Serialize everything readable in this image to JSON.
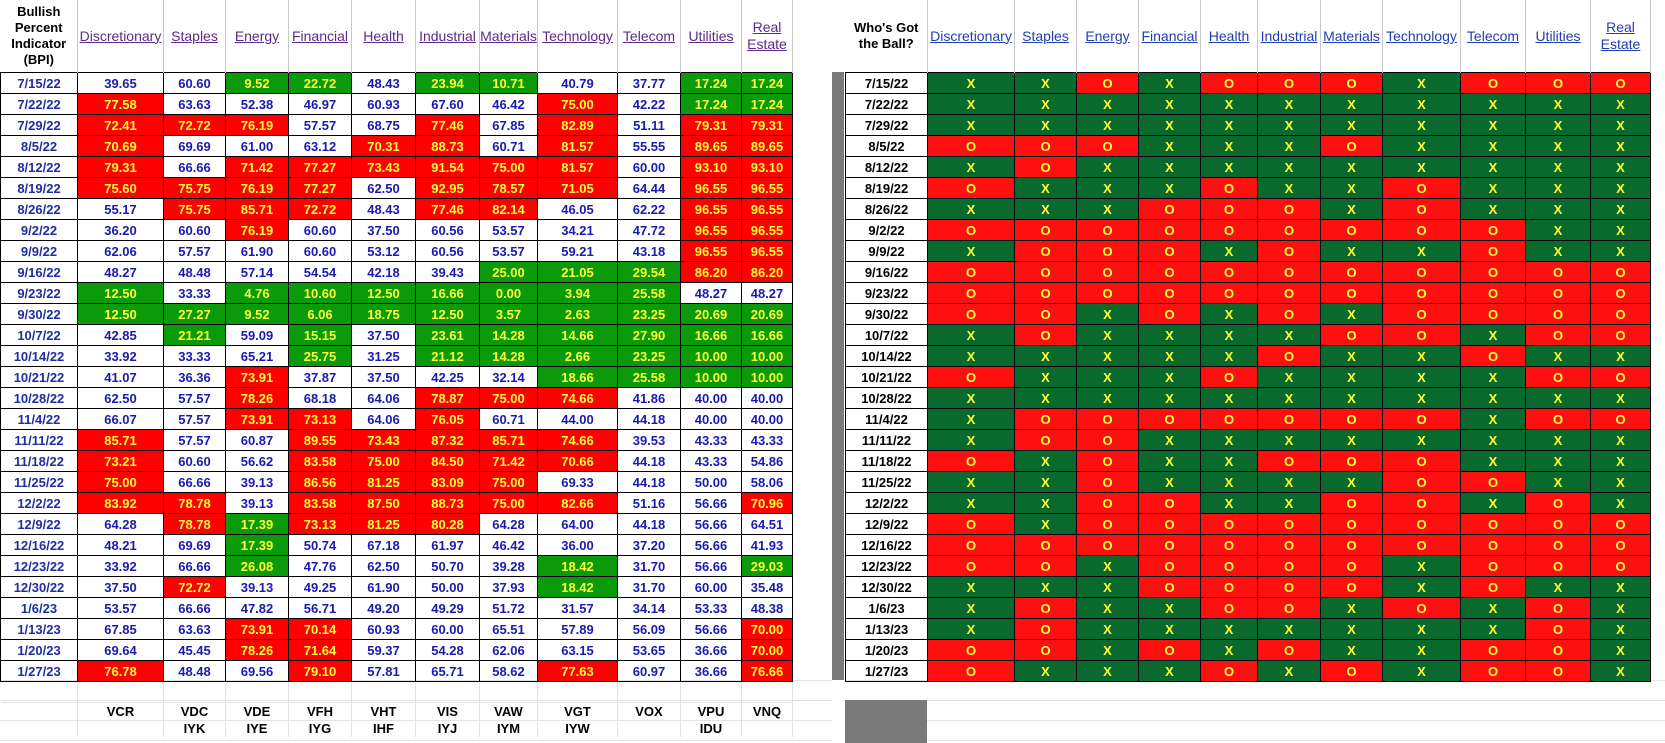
{
  "left_header_title": "Bullish\nPercent\nIndicator\n(BPI)",
  "right_header_title": "Who's Got\nthe Ball?",
  "sectors": [
    "Discretionary",
    "Staples",
    "Energy",
    "Financial",
    "Health",
    "Industrial",
    "Materials",
    "Technology",
    "Telecom",
    "Utilities",
    "Real\nEstate"
  ],
  "etfs_row1": [
    "VCR",
    "VDC",
    "VDE",
    "VFH",
    "VHT",
    "VIS",
    "VAW",
    "VGT",
    "VOX",
    "VPU",
    "VNQ"
  ],
  "etfs_row2": [
    "",
    "IYK",
    "IYE",
    "IYG",
    "IHF",
    "IYJ",
    "IYM",
    "IYW",
    "",
    "IDU",
    ""
  ],
  "colors": {
    "red": "#ff0000",
    "green": "#0a9a0a",
    "dark_green": "#0a6a2e",
    "yellow_text": "#ffff33",
    "blue_text": "#1a1ab0"
  },
  "rows": [
    {
      "date": "7/15/22",
      "bpi": [
        "39.65",
        "60.60",
        "9.52",
        "22.72",
        "48.43",
        "23.94",
        "10.71",
        "40.79",
        "37.77",
        "17.24",
        "17.24"
      ],
      "bpi_color": [
        "w",
        "w",
        "g",
        "g",
        "w",
        "g",
        "g",
        "w",
        "w",
        "g",
        "g"
      ],
      "ball": [
        "X",
        "X",
        "O",
        "X",
        "O",
        "O",
        "O",
        "X",
        "O",
        "O",
        "O"
      ]
    },
    {
      "date": "7/22/22",
      "bpi": [
        "77.58",
        "63.63",
        "52.38",
        "46.97",
        "60.93",
        "67.60",
        "46.42",
        "75.00",
        "42.22",
        "17.24",
        "17.24"
      ],
      "bpi_color": [
        "r",
        "w",
        "w",
        "w",
        "w",
        "w",
        "w",
        "r",
        "w",
        "g",
        "g"
      ],
      "ball": [
        "X",
        "X",
        "X",
        "X",
        "X",
        "X",
        "X",
        "X",
        "X",
        "X",
        "X"
      ]
    },
    {
      "date": "7/29/22",
      "bpi": [
        "72.41",
        "72.72",
        "76.19",
        "57.57",
        "68.75",
        "77.46",
        "67.85",
        "82.89",
        "51.11",
        "79.31",
        "79.31"
      ],
      "bpi_color": [
        "r",
        "r",
        "r",
        "w",
        "w",
        "r",
        "w",
        "r",
        "w",
        "r",
        "r"
      ],
      "ball": [
        "X",
        "X",
        "X",
        "X",
        "X",
        "X",
        "X",
        "X",
        "X",
        "X",
        "X"
      ]
    },
    {
      "date": "8/5/22",
      "bpi": [
        "70.69",
        "69.69",
        "61.00",
        "63.12",
        "70.31",
        "88.73",
        "60.71",
        "81.57",
        "55.55",
        "89.65",
        "89.65"
      ],
      "bpi_color": [
        "r",
        "w",
        "w",
        "w",
        "r",
        "r",
        "w",
        "r",
        "w",
        "r",
        "r"
      ],
      "ball": [
        "O",
        "O",
        "O",
        "X",
        "X",
        "X",
        "O",
        "X",
        "X",
        "X",
        "X"
      ]
    },
    {
      "date": "8/12/22",
      "bpi": [
        "79.31",
        "66.66",
        "71.42",
        "77.27",
        "73.43",
        "91.54",
        "75.00",
        "81.57",
        "60.00",
        "93.10",
        "93.10"
      ],
      "bpi_color": [
        "r",
        "w",
        "r",
        "r",
        "r",
        "r",
        "r",
        "r",
        "w",
        "r",
        "r"
      ],
      "ball": [
        "X",
        "O",
        "X",
        "X",
        "X",
        "X",
        "X",
        "X",
        "X",
        "X",
        "X"
      ]
    },
    {
      "date": "8/19/22",
      "bpi": [
        "75.60",
        "75.75",
        "76.19",
        "77.27",
        "62.50",
        "92.95",
        "78.57",
        "71.05",
        "64.44",
        "96.55",
        "96.55"
      ],
      "bpi_color": [
        "r",
        "r",
        "r",
        "r",
        "w",
        "r",
        "r",
        "r",
        "w",
        "r",
        "r"
      ],
      "ball": [
        "O",
        "X",
        "X",
        "X",
        "O",
        "X",
        "X",
        "O",
        "X",
        "X",
        "X"
      ]
    },
    {
      "date": "8/26/22",
      "bpi": [
        "55.17",
        "75.75",
        "85.71",
        "72.72",
        "48.43",
        "77.46",
        "82.14",
        "46.05",
        "62.22",
        "96.55",
        "96.55"
      ],
      "bpi_color": [
        "w",
        "r",
        "r",
        "r",
        "w",
        "r",
        "r",
        "w",
        "w",
        "r",
        "r"
      ],
      "ball": [
        "X",
        "X",
        "X",
        "O",
        "O",
        "O",
        "X",
        "O",
        "X",
        "X",
        "X"
      ]
    },
    {
      "date": "9/2/22",
      "bpi": [
        "36.20",
        "60.60",
        "76.19",
        "60.60",
        "37.50",
        "60.56",
        "53.57",
        "34.21",
        "47.72",
        "96.55",
        "96.55"
      ],
      "bpi_color": [
        "w",
        "w",
        "r",
        "w",
        "w",
        "w",
        "w",
        "w",
        "w",
        "r",
        "r"
      ],
      "ball": [
        "O",
        "O",
        "O",
        "O",
        "O",
        "O",
        "O",
        "O",
        "O",
        "X",
        "X"
      ]
    },
    {
      "date": "9/9/22",
      "bpi": [
        "62.06",
        "57.57",
        "61.90",
        "60.60",
        "53.12",
        "60.56",
        "53.57",
        "59.21",
        "43.18",
        "96.55",
        "96.55"
      ],
      "bpi_color": [
        "w",
        "w",
        "w",
        "w",
        "w",
        "w",
        "w",
        "w",
        "w",
        "r",
        "r"
      ],
      "ball": [
        "X",
        "O",
        "O",
        "O",
        "X",
        "O",
        "X",
        "X",
        "O",
        "X",
        "X"
      ]
    },
    {
      "date": "9/16/22",
      "bpi": [
        "48.27",
        "48.48",
        "57.14",
        "54.54",
        "42.18",
        "39.43",
        "25.00",
        "21.05",
        "29.54",
        "86.20",
        "86.20"
      ],
      "bpi_color": [
        "w",
        "w",
        "w",
        "w",
        "w",
        "w",
        "g",
        "g",
        "g",
        "r",
        "r"
      ],
      "ball": [
        "O",
        "O",
        "O",
        "O",
        "O",
        "O",
        "O",
        "O",
        "O",
        "O",
        "O"
      ]
    },
    {
      "date": "9/23/22",
      "bpi": [
        "12.50",
        "33.33",
        "4.76",
        "10.60",
        "12.50",
        "16.66",
        "0.00",
        "3.94",
        "25.58",
        "48.27",
        "48.27"
      ],
      "bpi_color": [
        "g",
        "w",
        "g",
        "g",
        "g",
        "g",
        "g",
        "g",
        "g",
        "w",
        "w"
      ],
      "ball": [
        "O",
        "O",
        "O",
        "O",
        "O",
        "O",
        "O",
        "O",
        "O",
        "O",
        "O"
      ]
    },
    {
      "date": "9/30/22",
      "bpi": [
        "12.50",
        "27.27",
        "9.52",
        "6.06",
        "18.75",
        "12.50",
        "3.57",
        "2.63",
        "23.25",
        "20.69",
        "20.69"
      ],
      "bpi_color": [
        "g",
        "g",
        "g",
        "g",
        "g",
        "g",
        "g",
        "g",
        "g",
        "g",
        "g"
      ],
      "ball": [
        "O",
        "O",
        "X",
        "O",
        "X",
        "O",
        "X",
        "O",
        "O",
        "O",
        "O"
      ]
    },
    {
      "date": "10/7/22",
      "bpi": [
        "42.85",
        "21.21",
        "59.09",
        "15.15",
        "37.50",
        "23.61",
        "14.28",
        "14.66",
        "27.90",
        "16.66",
        "16.66"
      ],
      "bpi_color": [
        "w",
        "g",
        "w",
        "g",
        "w",
        "g",
        "g",
        "g",
        "g",
        "g",
        "g"
      ],
      "ball": [
        "X",
        "O",
        "X",
        "X",
        "X",
        "X",
        "O",
        "O",
        "X",
        "O",
        "O"
      ]
    },
    {
      "date": "10/14/22",
      "bpi": [
        "33.92",
        "33.33",
        "65.21",
        "25.75",
        "31.25",
        "21.12",
        "14.28",
        "2.66",
        "23.25",
        "10.00",
        "10.00"
      ],
      "bpi_color": [
        "w",
        "w",
        "w",
        "g",
        "w",
        "g",
        "g",
        "g",
        "g",
        "g",
        "g"
      ],
      "ball": [
        "X",
        "X",
        "X",
        "X",
        "X",
        "O",
        "X",
        "X",
        "O",
        "X",
        "X"
      ]
    },
    {
      "date": "10/21/22",
      "bpi": [
        "41.07",
        "36.36",
        "73.91",
        "37.87",
        "37.50",
        "42.25",
        "32.14",
        "18.66",
        "25.58",
        "10.00",
        "10.00"
      ],
      "bpi_color": [
        "w",
        "w",
        "r",
        "w",
        "w",
        "w",
        "w",
        "g",
        "g",
        "g",
        "g"
      ],
      "ball": [
        "O",
        "X",
        "X",
        "X",
        "O",
        "X",
        "X",
        "X",
        "X",
        "O",
        "O"
      ]
    },
    {
      "date": "10/28/22",
      "bpi": [
        "62.50",
        "57.57",
        "78.26",
        "68.18",
        "64.06",
        "78.87",
        "75.00",
        "74.66",
        "41.86",
        "40.00",
        "40.00"
      ],
      "bpi_color": [
        "w",
        "w",
        "r",
        "w",
        "w",
        "r",
        "r",
        "r",
        "w",
        "w",
        "w"
      ],
      "ball": [
        "X",
        "X",
        "X",
        "X",
        "X",
        "X",
        "X",
        "X",
        "X",
        "X",
        "X"
      ]
    },
    {
      "date": "11/4/22",
      "bpi": [
        "66.07",
        "57.57",
        "73.91",
        "73.13",
        "64.06",
        "76.05",
        "60.71",
        "44.00",
        "44.18",
        "40.00",
        "40.00"
      ],
      "bpi_color": [
        "w",
        "w",
        "r",
        "r",
        "w",
        "r",
        "w",
        "w",
        "w",
        "w",
        "w"
      ],
      "ball": [
        "X",
        "O",
        "O",
        "O",
        "O",
        "O",
        "O",
        "O",
        "X",
        "O",
        "O"
      ]
    },
    {
      "date": "11/11/22",
      "bpi": [
        "85.71",
        "57.57",
        "60.87",
        "89.55",
        "73.43",
        "87.32",
        "85.71",
        "74.66",
        "39.53",
        "43.33",
        "43.33"
      ],
      "bpi_color": [
        "r",
        "w",
        "w",
        "r",
        "r",
        "r",
        "r",
        "r",
        "w",
        "w",
        "w"
      ],
      "ball": [
        "X",
        "O",
        "O",
        "X",
        "X",
        "X",
        "X",
        "X",
        "X",
        "X",
        "X"
      ]
    },
    {
      "date": "11/18/22",
      "bpi": [
        "73.21",
        "60.60",
        "56.62",
        "83.58",
        "75.00",
        "84.50",
        "71.42",
        "70.66",
        "44.18",
        "43.33",
        "54.86"
      ],
      "bpi_color": [
        "r",
        "w",
        "w",
        "r",
        "r",
        "r",
        "r",
        "r",
        "w",
        "w",
        "w"
      ],
      "ball": [
        "O",
        "X",
        "O",
        "X",
        "X",
        "O",
        "O",
        "O",
        "X",
        "X",
        "X"
      ]
    },
    {
      "date": "11/25/22",
      "bpi": [
        "75.00",
        "66.66",
        "39.13",
        "86.56",
        "81.25",
        "83.09",
        "75.00",
        "69.33",
        "44.18",
        "50.00",
        "58.06"
      ],
      "bpi_color": [
        "r",
        "w",
        "w",
        "r",
        "r",
        "r",
        "r",
        "w",
        "w",
        "w",
        "w"
      ],
      "ball": [
        "X",
        "X",
        "O",
        "X",
        "X",
        "X",
        "X",
        "O",
        "O",
        "X",
        "X"
      ]
    },
    {
      "date": "12/2/22",
      "bpi": [
        "83.92",
        "78.78",
        "39.13",
        "83.58",
        "87.50",
        "88.73",
        "75.00",
        "82.66",
        "51.16",
        "56.66",
        "70.96"
      ],
      "bpi_color": [
        "r",
        "r",
        "w",
        "r",
        "r",
        "r",
        "r",
        "r",
        "w",
        "w",
        "r"
      ],
      "ball": [
        "X",
        "X",
        "O",
        "O",
        "X",
        "X",
        "O",
        "O",
        "X",
        "O",
        "X"
      ]
    },
    {
      "date": "12/9/22",
      "bpi": [
        "64.28",
        "78.78",
        "17.39",
        "73.13",
        "81.25",
        "80.28",
        "64.28",
        "64.00",
        "44.18",
        "56.66",
        "64.51"
      ],
      "bpi_color": [
        "w",
        "r",
        "g",
        "r",
        "r",
        "r",
        "w",
        "w",
        "w",
        "w",
        "w"
      ],
      "ball": [
        "O",
        "X",
        "O",
        "O",
        "O",
        "O",
        "O",
        "O",
        "O",
        "O",
        "O"
      ]
    },
    {
      "date": "12/16/22",
      "bpi": [
        "48.21",
        "69.69",
        "17.39",
        "50.74",
        "67.18",
        "61.97",
        "46.42",
        "36.00",
        "37.20",
        "56.66",
        "41.93"
      ],
      "bpi_color": [
        "w",
        "w",
        "g",
        "w",
        "w",
        "w",
        "w",
        "w",
        "w",
        "w",
        "w"
      ],
      "ball": [
        "O",
        "O",
        "O",
        "O",
        "O",
        "O",
        "O",
        "O",
        "O",
        "O",
        "O"
      ]
    },
    {
      "date": "12/23/22",
      "bpi": [
        "33.92",
        "66.66",
        "26.08",
        "47.76",
        "62.50",
        "50.70",
        "39.28",
        "18.42",
        "31.70",
        "56.66",
        "29.03"
      ],
      "bpi_color": [
        "w",
        "w",
        "g",
        "w",
        "w",
        "w",
        "w",
        "g",
        "w",
        "w",
        "g"
      ],
      "ball": [
        "O",
        "O",
        "X",
        "O",
        "O",
        "O",
        "O",
        "X",
        "O",
        "O",
        "O"
      ]
    },
    {
      "date": "12/30/22",
      "bpi": [
        "37.50",
        "72.72",
        "39.13",
        "49.25",
        "61.90",
        "50.00",
        "37.93",
        "18.42",
        "31.70",
        "60.00",
        "35.48"
      ],
      "bpi_color": [
        "w",
        "r",
        "w",
        "w",
        "w",
        "w",
        "w",
        "g",
        "w",
        "w",
        "w"
      ],
      "ball": [
        "X",
        "X",
        "X",
        "O",
        "O",
        "O",
        "O",
        "X",
        "O",
        "X",
        "X"
      ]
    },
    {
      "date": "1/6/23",
      "bpi": [
        "53.57",
        "66.66",
        "47.82",
        "56.71",
        "49.20",
        "49.29",
        "51.72",
        "31.57",
        "34.14",
        "53.33",
        "48.38"
      ],
      "bpi_color": [
        "w",
        "w",
        "w",
        "w",
        "w",
        "w",
        "w",
        "w",
        "w",
        "w",
        "w"
      ],
      "ball": [
        "X",
        "O",
        "X",
        "X",
        "O",
        "O",
        "X",
        "O",
        "X",
        "O",
        "X"
      ]
    },
    {
      "date": "1/13/23",
      "bpi": [
        "67.85",
        "63.63",
        "73.91",
        "70.14",
        "60.93",
        "60.00",
        "65.51",
        "57.89",
        "56.09",
        "56.66",
        "70.00"
      ],
      "bpi_color": [
        "w",
        "w",
        "r",
        "r",
        "w",
        "w",
        "w",
        "w",
        "w",
        "w",
        "r"
      ],
      "ball": [
        "X",
        "O",
        "X",
        "X",
        "X",
        "X",
        "X",
        "X",
        "X",
        "O",
        "X"
      ]
    },
    {
      "date": "1/20/23",
      "bpi": [
        "69.64",
        "45.45",
        "78.26",
        "71.64",
        "59.37",
        "54.28",
        "62.06",
        "63.15",
        "53.65",
        "36.66",
        "70.00"
      ],
      "bpi_color": [
        "w",
        "w",
        "r",
        "r",
        "w",
        "w",
        "w",
        "w",
        "w",
        "w",
        "r"
      ],
      "ball": [
        "O",
        "O",
        "X",
        "O",
        "X",
        "O",
        "X",
        "X",
        "O",
        "O",
        "X"
      ]
    },
    {
      "date": "1/27/23",
      "bpi": [
        "76.78",
        "48.48",
        "69.56",
        "79.10",
        "57.81",
        "65.71",
        "58.62",
        "77.63",
        "60.97",
        "36.66",
        "76.66"
      ],
      "bpi_color": [
        "r",
        "w",
        "w",
        "r",
        "w",
        "w",
        "w",
        "r",
        "w",
        "w",
        "r"
      ],
      "ball": [
        "O",
        "X",
        "X",
        "X",
        "O",
        "X",
        "O",
        "X",
        "O",
        "O",
        "X"
      ]
    }
  ]
}
